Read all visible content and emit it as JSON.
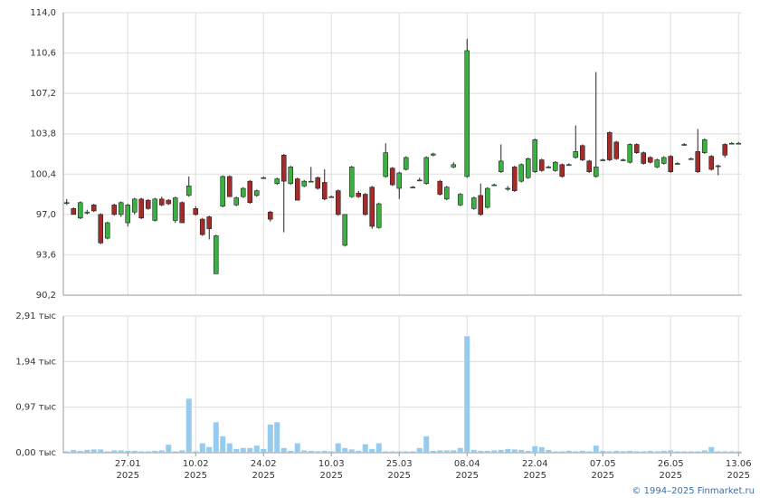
{
  "chart_data": [
    {
      "type": "candlestick",
      "up_color": "#3cb043",
      "down_color": "#a52a2a",
      "open": [
        98.0,
        97.5,
        96.7,
        97.2,
        97.8,
        97.0,
        95.0,
        97.8,
        97.0,
        96.3,
        97.2,
        98.3,
        98.2,
        96.5,
        98.3,
        98.2,
        96.5,
        98.0,
        98.6,
        97.5,
        96.6,
        96.8,
        92.0,
        97.7,
        100.2,
        97.8,
        98.5,
        99.8,
        98.6,
        100.1,
        97.2,
        99.6,
        102.0,
        99.6,
        100.0,
        99.4,
        99.8,
        100.1,
        99.7,
        98.5,
        99.0,
        94.4,
        98.5,
        98.8,
        98.7,
        99.3,
        95.9,
        100.2,
        100.9,
        99.2,
        100.8,
        99.3,
        99.9,
        99.6,
        102.0,
        99.8,
        98.3,
        101.0,
        97.8,
        100.2,
        97.5,
        98.6,
        97.6,
        99.5,
        100.6,
        99.2,
        101.0,
        99.8,
        100.1,
        100.6,
        101.6,
        101.0,
        100.7,
        101.2,
        101.2,
        101.8,
        102.8,
        101.5,
        100.2,
        101.6,
        103.9,
        103.1,
        101.6,
        101.4,
        102.9,
        102.2,
        101.8,
        101.0,
        101.3,
        101.9,
        101.3,
        102.9,
        101.7,
        102.3,
        102.2,
        101.9,
        101.1,
        102.9,
        103.0,
        103.0
      ],
      "high": [
        98.3,
        97.6,
        98.1,
        97.4,
        97.9,
        97.1,
        96.4,
        97.9,
        98.1,
        97.9,
        98.4,
        98.4,
        98.3,
        98.4,
        98.5,
        98.3,
        98.5,
        98.1,
        100.2,
        97.7,
        96.7,
        96.9,
        95.3,
        100.3,
        100.3,
        98.5,
        99.3,
        99.9,
        99.1,
        100.2,
        97.3,
        100.1,
        102.1,
        101.1,
        100.1,
        99.9,
        101.0,
        100.2,
        100.8,
        98.6,
        99.1,
        97.0,
        101.1,
        99.0,
        98.8,
        99.4,
        98.0,
        103.0,
        101.0,
        100.6,
        101.9,
        99.4,
        100.1,
        101.9,
        102.2,
        99.9,
        99.4,
        101.4,
        98.8,
        111.8,
        98.5,
        99.6,
        99.3,
        99.6,
        102.9,
        99.4,
        101.1,
        101.3,
        101.8,
        103.4,
        101.7,
        101.1,
        101.5,
        101.3,
        101.3,
        104.5,
        102.9,
        101.6,
        109.0,
        101.7,
        104.0,
        103.2,
        101.7,
        103.0,
        103.0,
        102.3,
        101.9,
        101.7,
        101.9,
        102.0,
        101.4,
        103.0,
        101.8,
        104.2,
        103.4,
        102.0,
        101.2,
        103.0,
        103.1,
        103.1
      ],
      "low": [
        97.8,
        97.0,
        96.6,
        97.0,
        97.2,
        94.5,
        94.9,
        96.9,
        96.8,
        96.0,
        97.0,
        96.6,
        97.4,
        96.4,
        97.7,
        97.8,
        96.3,
        96.3,
        98.5,
        96.9,
        95.2,
        94.9,
        92.0,
        97.6,
        98.5,
        97.7,
        98.4,
        97.9,
        98.5,
        100.0,
        96.4,
        99.5,
        95.5,
        99.5,
        98.2,
        99.3,
        99.7,
        99.1,
        98.2,
        98.4,
        96.9,
        94.3,
        98.4,
        98.4,
        96.9,
        95.8,
        95.8,
        100.1,
        99.4,
        98.3,
        100.7,
        99.2,
        99.8,
        99.5,
        101.9,
        98.6,
        98.2,
        100.9,
        97.7,
        100.1,
        97.4,
        96.9,
        97.5,
        99.4,
        100.5,
        99.0,
        98.9,
        99.7,
        100.0,
        100.5,
        100.6,
        100.9,
        100.6,
        100.1,
        101.1,
        101.7,
        101.5,
        100.5,
        100.1,
        101.5,
        101.5,
        101.6,
        101.5,
        101.3,
        102.1,
        101.2,
        101.3,
        100.9,
        101.2,
        100.5,
        101.2,
        102.8,
        101.6,
        100.5,
        102.1,
        100.7,
        100.3,
        101.8,
        102.9,
        102.9
      ],
      "close": [
        98.0,
        97.0,
        98.0,
        97.2,
        97.3,
        94.6,
        96.3,
        97.0,
        98.0,
        97.8,
        98.3,
        96.7,
        97.5,
        98.3,
        97.8,
        97.9,
        98.4,
        96.3,
        99.4,
        97.0,
        95.3,
        95.8,
        95.2,
        100.2,
        98.5,
        98.4,
        99.2,
        98.0,
        99.0,
        100.1,
        96.6,
        100.0,
        99.8,
        101.0,
        98.2,
        99.8,
        99.8,
        99.2,
        98.3,
        98.5,
        97.0,
        97.0,
        101.0,
        98.5,
        97.0,
        96.0,
        97.9,
        102.2,
        99.5,
        100.5,
        101.8,
        99.3,
        99.9,
        101.8,
        102.1,
        98.7,
        99.3,
        101.2,
        98.7,
        110.8,
        98.4,
        97.0,
        99.2,
        99.5,
        101.5,
        99.2,
        99.0,
        101.2,
        101.7,
        103.3,
        100.7,
        101.0,
        101.4,
        100.2,
        101.2,
        102.3,
        101.6,
        100.6,
        101.0,
        101.6,
        101.6,
        101.7,
        101.6,
        102.9,
        102.2,
        101.3,
        101.4,
        101.6,
        101.8,
        100.6,
        101.3,
        102.9,
        101.7,
        100.6,
        103.3,
        100.8,
        101.1,
        102.0,
        103.0,
        103.0
      ],
      "ylim": [
        90.2,
        114.0
      ],
      "yticks": [
        {
          "value": 90.2,
          "label": "90,2"
        },
        {
          "value": 93.6,
          "label": "93,6"
        },
        {
          "value": 97.0,
          "label": "97,0"
        },
        {
          "value": 100.4,
          "label": "100,4"
        },
        {
          "value": 103.8,
          "label": "103,8"
        },
        {
          "value": 107.2,
          "label": "107,2"
        },
        {
          "value": 110.6,
          "label": "110,6"
        },
        {
          "value": 114.0,
          "label": "114,0"
        }
      ],
      "grid": true
    },
    {
      "type": "bar",
      "color": "#94cbee",
      "categories": [
        null,
        null,
        null,
        null,
        null,
        null,
        null,
        null,
        null,
        "27.01\n2025",
        null,
        null,
        null,
        null,
        null,
        null,
        null,
        null,
        null,
        "10.02\n2025",
        null,
        null,
        null,
        null,
        null,
        null,
        null,
        null,
        null,
        "24.02\n2025",
        null,
        null,
        null,
        null,
        null,
        null,
        null,
        null,
        null,
        "10.03\n2025",
        null,
        null,
        null,
        null,
        null,
        null,
        null,
        null,
        null,
        "25.03\n2025",
        null,
        null,
        null,
        null,
        null,
        null,
        null,
        null,
        null,
        "08.04\n2025",
        null,
        null,
        null,
        null,
        null,
        null,
        null,
        null,
        null,
        "22.04\n2025",
        null,
        null,
        null,
        null,
        null,
        null,
        null,
        null,
        null,
        "07.05\n2025",
        null,
        null,
        null,
        null,
        null,
        null,
        null,
        null,
        null,
        "26.05\n2025",
        null,
        null,
        null,
        null,
        null,
        null,
        null,
        null,
        null,
        "13.06\n2025"
      ],
      "values": [
        0.03,
        0.06,
        0.04,
        0.06,
        0.07,
        0.07,
        0.03,
        0.05,
        0.05,
        0.04,
        0.04,
        0.03,
        0.03,
        0.04,
        0.05,
        0.17,
        0.03,
        0.05,
        1.15,
        0.03,
        0.2,
        0.12,
        0.65,
        0.35,
        0.2,
        0.08,
        0.1,
        0.1,
        0.15,
        0.08,
        0.6,
        0.65,
        0.1,
        0.04,
        0.2,
        0.05,
        0.04,
        0.03,
        0.04,
        0.03,
        0.2,
        0.1,
        0.07,
        0.04,
        0.18,
        0.08,
        0.2,
        0.03,
        0.03,
        0.03,
        0.03,
        0.03,
        0.1,
        0.35,
        0.04,
        0.05,
        0.05,
        0.05,
        0.1,
        2.48,
        0.06,
        0.04,
        0.04,
        0.05,
        0.06,
        0.08,
        0.07,
        0.06,
        0.04,
        0.14,
        0.12,
        0.06,
        0.03,
        0.03,
        0.04,
        0.03,
        0.04,
        0.03,
        0.15,
        0.04,
        0.03,
        0.04,
        0.03,
        0.04,
        0.03,
        0.03,
        0.04,
        0.03,
        0.04,
        0.05,
        0.03,
        0.03,
        0.03,
        0.03,
        0.05,
        0.12,
        0.03,
        0.03,
        0.03,
        0.03
      ],
      "ylim": [
        0,
        2.91
      ],
      "yticks": [
        {
          "value": 0,
          "label": "0,00 тыс"
        },
        {
          "value": 0.97,
          "label": "0,97 тыс"
        },
        {
          "value": 1.94,
          "label": "1,94 тыс"
        },
        {
          "value": 2.91,
          "label": "2,91 тыс"
        }
      ],
      "grid": true
    }
  ],
  "footer": "© 1994–2025 Finmarket.ru"
}
